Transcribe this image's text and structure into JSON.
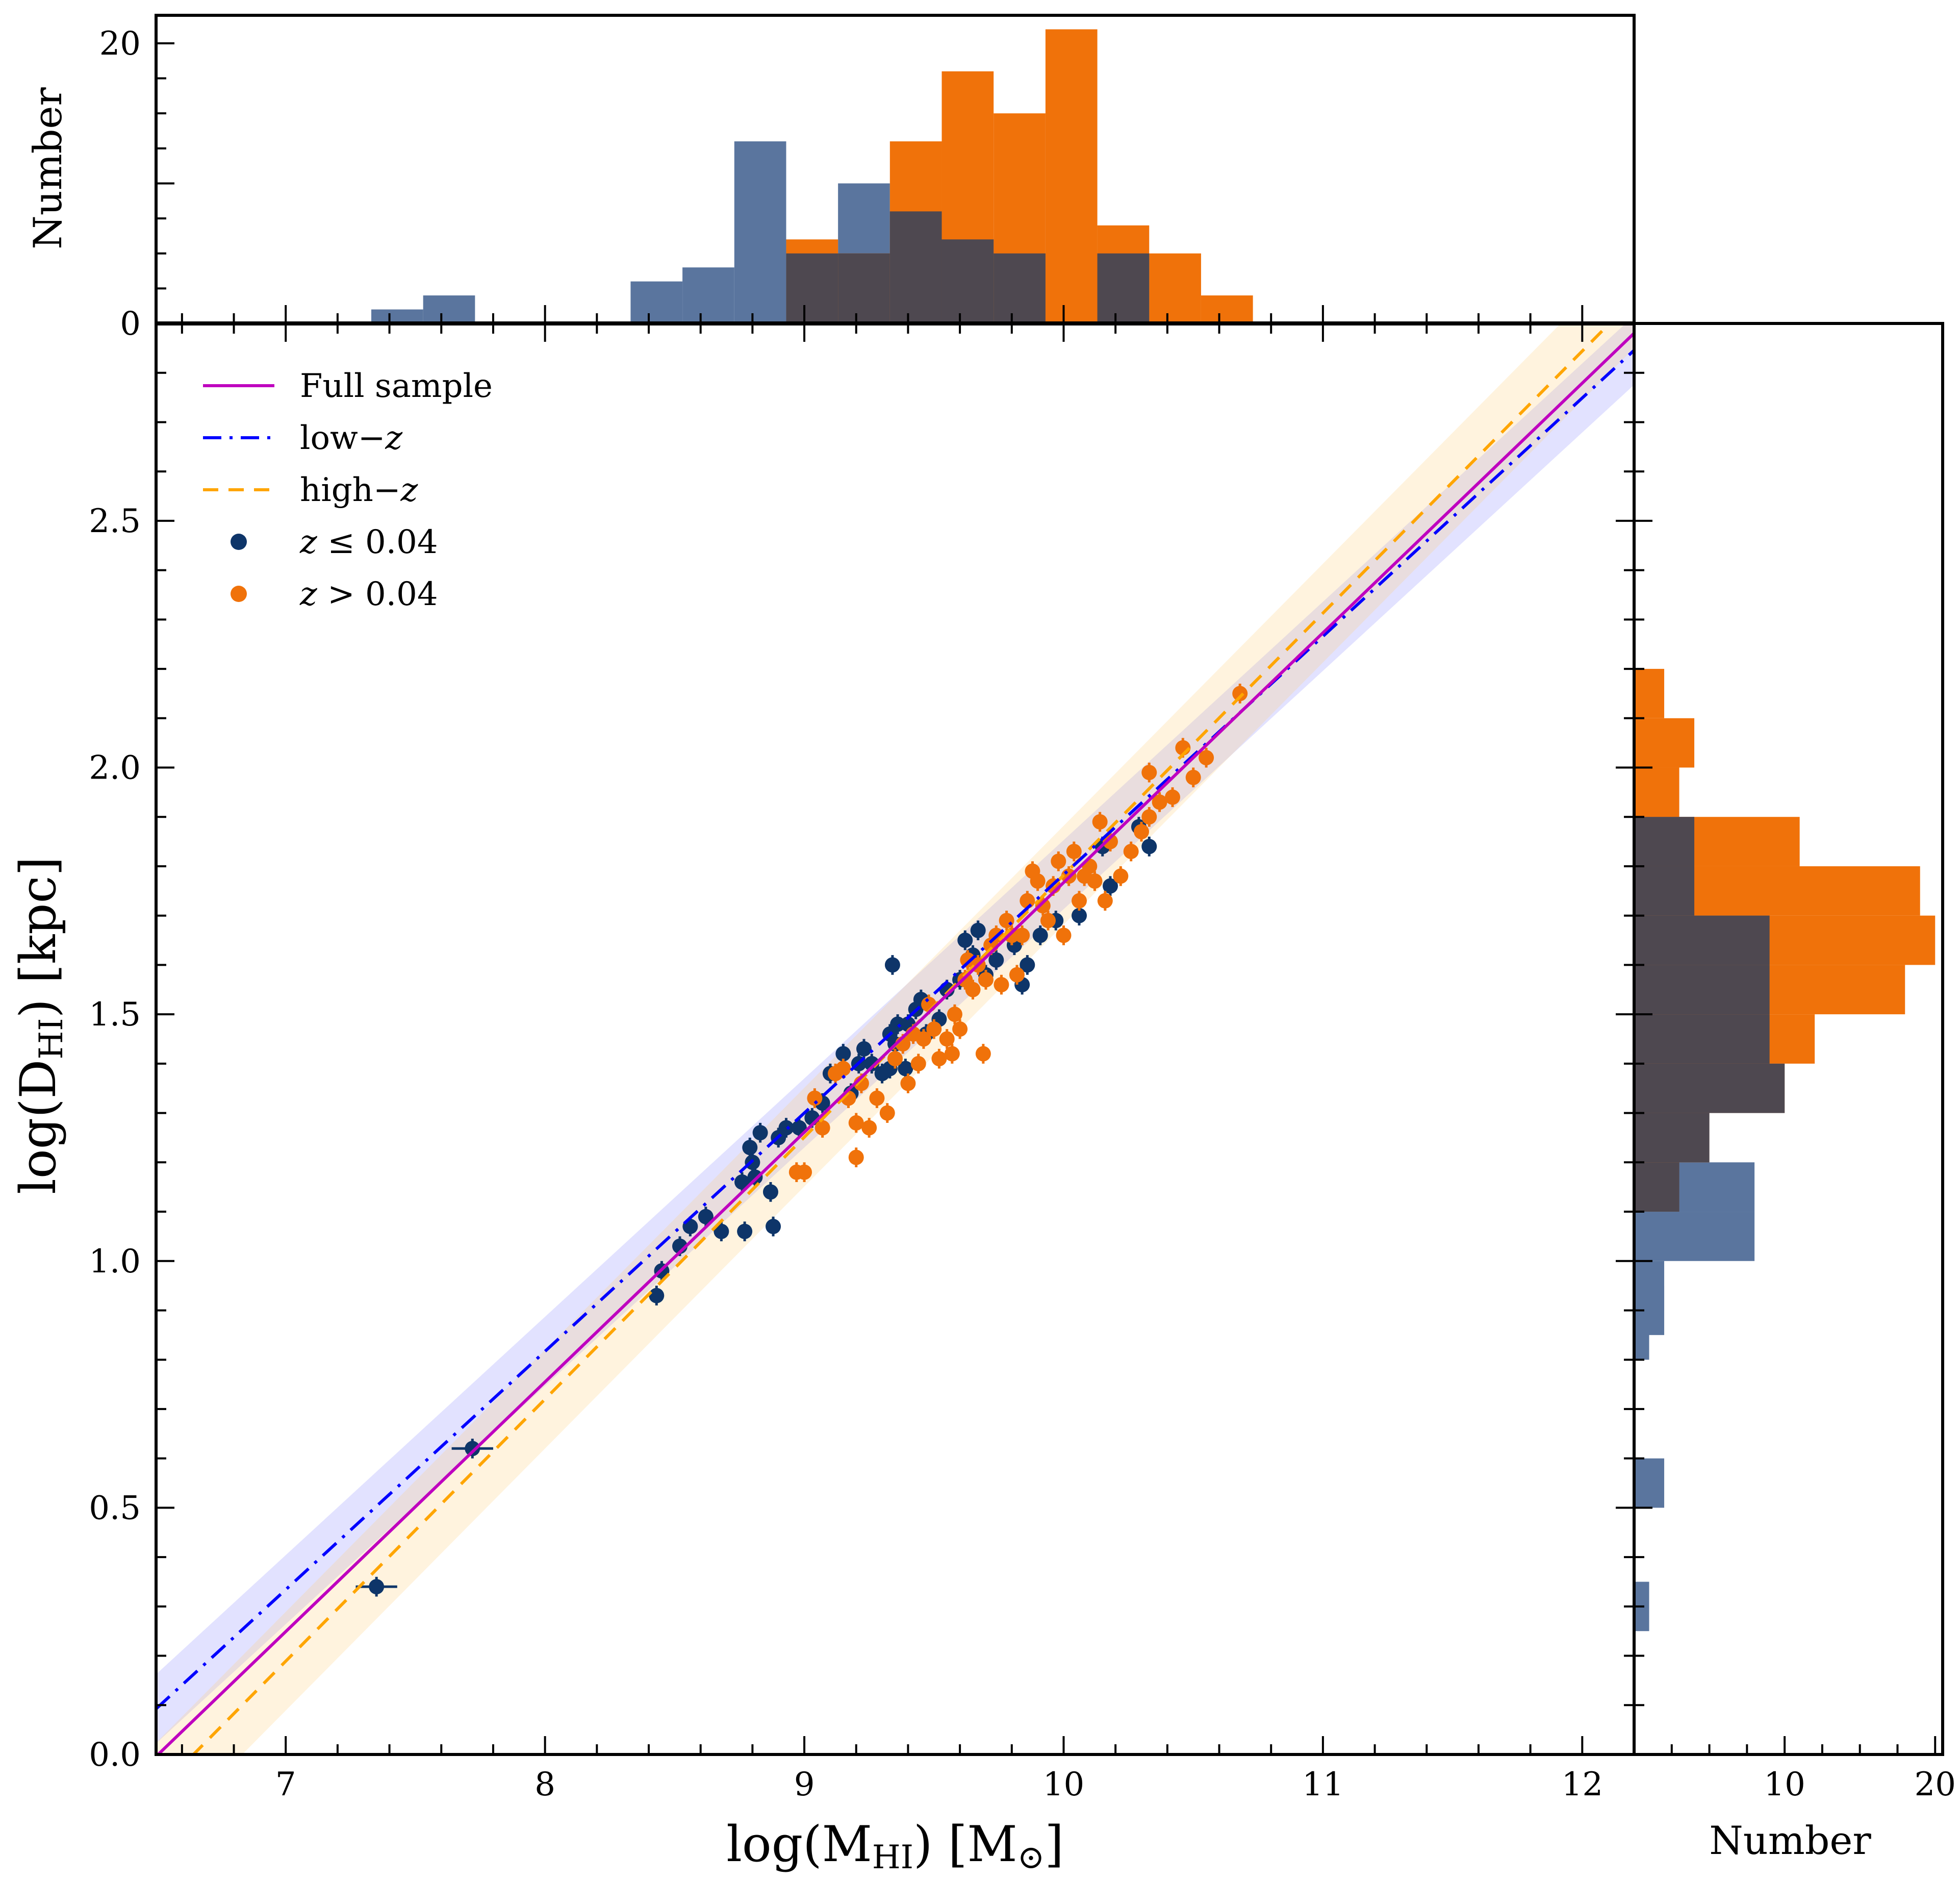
{
  "chart_data": [
    {
      "type": "scatter",
      "role": "main",
      "xlabel": "log(M_HI) [M_⊙]",
      "xlabel_parts": {
        "pre": "log(M",
        "sub": "HI",
        "mid": ") [M",
        "sub2": "⊙",
        "post": "]"
      },
      "ylabel": "log(D_HI) [kpc]",
      "ylabel_parts": {
        "pre": "log(D",
        "sub": "HI",
        "post": ") [kpc]"
      },
      "xlim": [
        6.5,
        12.2
      ],
      "ylim": [
        0.0,
        2.9
      ],
      "xticks": [
        7,
        8,
        9,
        10,
        11,
        12
      ],
      "xtick_labels": [
        "7",
        "8",
        "9",
        "10",
        "11",
        "12"
      ],
      "yticks": [
        0.0,
        0.5,
        1.0,
        1.5,
        2.0,
        2.5
      ],
      "ytick_labels": [
        "0.0",
        "0.5",
        "1.0",
        "1.5",
        "2.0",
        "2.5"
      ],
      "grid": false,
      "legend_position": "top-left",
      "legend": [
        {
          "label": "Full sample",
          "kind": "line",
          "style": "solid",
          "color": "#bf00bf"
        },
        {
          "label": "low−z",
          "label_parts": [
            "low−",
            "z"
          ],
          "kind": "line",
          "style": "dashdot",
          "color": "#0000ff"
        },
        {
          "label": "high−z",
          "label_parts": [
            "high−",
            "z"
          ],
          "kind": "line",
          "style": "dashed",
          "color": "#ffa500"
        },
        {
          "label": "z ≤ 0.04",
          "label_parts": [
            "z",
            " ≤ 0.04"
          ],
          "kind": "marker",
          "color": "#0e3569"
        },
        {
          "label": "z > 0.04",
          "label_parts": [
            "z",
            " > 0.04"
          ],
          "kind": "marker",
          "color": "#f0720a"
        }
      ],
      "fits": [
        {
          "name": "Full sample",
          "slope": 0.506,
          "intercept": -3.293,
          "color": "#bf00bf",
          "dash": "",
          "width": 6,
          "band": 0
        },
        {
          "name": "low−z",
          "slope": 0.483,
          "intercept": -3.047,
          "color": "#0000ff",
          "dash": "36,16,6,16",
          "width": 6,
          "band": 0.07,
          "band_color": "#6f6fff",
          "band_opacity": 0.2
        },
        {
          "name": "high−z",
          "slope": 0.531,
          "intercept": -3.528,
          "color": "#ffa500",
          "dash": "30,20",
          "width": 6,
          "band": 0.1,
          "band_color": "#ffcf7a",
          "band_opacity": 0.25
        }
      ],
      "series": [
        {
          "name": "z ≤ 0.04",
          "color": "#0e3569",
          "points": [
            [
              7.35,
              0.34
            ],
            [
              7.72,
              0.62
            ],
            [
              8.43,
              0.93
            ],
            [
              8.45,
              0.98
            ],
            [
              8.52,
              1.03
            ],
            [
              8.56,
              1.07
            ],
            [
              8.62,
              1.09
            ],
            [
              8.68,
              1.06
            ],
            [
              8.77,
              1.06
            ],
            [
              8.76,
              1.16
            ],
            [
              8.8,
              1.2
            ],
            [
              8.79,
              1.23
            ],
            [
              8.83,
              1.26
            ],
            [
              8.81,
              1.17
            ],
            [
              8.88,
              1.07
            ],
            [
              8.87,
              1.14
            ],
            [
              8.9,
              1.25
            ],
            [
              8.93,
              1.27
            ],
            [
              8.98,
              1.27
            ],
            [
              9.03,
              1.29
            ],
            [
              9.07,
              1.32
            ],
            [
              9.1,
              1.38
            ],
            [
              9.15,
              1.42
            ],
            [
              9.18,
              1.34
            ],
            [
              9.21,
              1.4
            ],
            [
              9.23,
              1.43
            ],
            [
              9.26,
              1.4
            ],
            [
              9.3,
              1.38
            ],
            [
              9.33,
              1.39
            ],
            [
              9.35,
              1.44
            ],
            [
              9.33,
              1.46
            ],
            [
              9.36,
              1.48
            ],
            [
              9.39,
              1.39
            ],
            [
              9.34,
              1.6
            ],
            [
              9.4,
              1.48
            ],
            [
              9.43,
              1.51
            ],
            [
              9.45,
              1.53
            ],
            [
              9.47,
              1.46
            ],
            [
              9.52,
              1.49
            ],
            [
              9.55,
              1.55
            ],
            [
              9.6,
              1.57
            ],
            [
              9.65,
              1.62
            ],
            [
              9.62,
              1.65
            ],
            [
              9.67,
              1.67
            ],
            [
              9.7,
              1.58
            ],
            [
              9.74,
              1.61
            ],
            [
              9.81,
              1.64
            ],
            [
              9.86,
              1.6
            ],
            [
              9.84,
              1.56
            ],
            [
              9.91,
              1.66
            ],
            [
              9.97,
              1.69
            ],
            [
              10.06,
              1.7
            ],
            [
              10.15,
              1.84
            ],
            [
              10.18,
              1.76
            ],
            [
              10.29,
              1.88
            ],
            [
              10.33,
              1.84
            ]
          ]
        },
        {
          "name": "z > 0.04",
          "color": "#f0720a",
          "points": [
            [
              8.97,
              1.18
            ],
            [
              9.0,
              1.18
            ],
            [
              9.04,
              1.33
            ],
            [
              9.07,
              1.27
            ],
            [
              9.12,
              1.38
            ],
            [
              9.15,
              1.39
            ],
            [
              9.17,
              1.33
            ],
            [
              9.2,
              1.28
            ],
            [
              9.2,
              1.21
            ],
            [
              9.22,
              1.36
            ],
            [
              9.25,
              1.27
            ],
            [
              9.28,
              1.33
            ],
            [
              9.32,
              1.3
            ],
            [
              9.35,
              1.41
            ],
            [
              9.38,
              1.44
            ],
            [
              9.4,
              1.36
            ],
            [
              9.42,
              1.46
            ],
            [
              9.44,
              1.4
            ],
            [
              9.46,
              1.45
            ],
            [
              9.48,
              1.52
            ],
            [
              9.5,
              1.47
            ],
            [
              9.52,
              1.41
            ],
            [
              9.55,
              1.45
            ],
            [
              9.57,
              1.42
            ],
            [
              9.58,
              1.5
            ],
            [
              9.6,
              1.47
            ],
            [
              9.62,
              1.57
            ],
            [
              9.63,
              1.61
            ],
            [
              9.65,
              1.55
            ],
            [
              9.67,
              1.6
            ],
            [
              9.69,
              1.42
            ],
            [
              9.7,
              1.57
            ],
            [
              9.72,
              1.64
            ],
            [
              9.74,
              1.66
            ],
            [
              9.76,
              1.56
            ],
            [
              9.78,
              1.69
            ],
            [
              9.8,
              1.66
            ],
            [
              9.82,
              1.58
            ],
            [
              9.84,
              1.66
            ],
            [
              9.86,
              1.73
            ],
            [
              9.88,
              1.79
            ],
            [
              9.9,
              1.77
            ],
            [
              9.92,
              1.72
            ],
            [
              9.94,
              1.69
            ],
            [
              9.96,
              1.76
            ],
            [
              9.98,
              1.81
            ],
            [
              10.0,
              1.66
            ],
            [
              10.02,
              1.78
            ],
            [
              10.04,
              1.83
            ],
            [
              10.06,
              1.73
            ],
            [
              10.08,
              1.78
            ],
            [
              10.1,
              1.8
            ],
            [
              10.12,
              1.77
            ],
            [
              10.14,
              1.89
            ],
            [
              10.16,
              1.73
            ],
            [
              10.18,
              1.85
            ],
            [
              10.22,
              1.78
            ],
            [
              10.26,
              1.83
            ],
            [
              10.3,
              1.87
            ],
            [
              10.33,
              1.9
            ],
            [
              10.33,
              1.99
            ],
            [
              10.37,
              1.93
            ],
            [
              10.42,
              1.94
            ],
            [
              10.46,
              2.04
            ],
            [
              10.5,
              1.98
            ],
            [
              10.55,
              2.02
            ],
            [
              10.68,
              2.15
            ]
          ]
        }
      ]
    },
    {
      "type": "bar",
      "role": "top-histogram",
      "ylabel": "Number",
      "ylim": [
        0,
        22
      ],
      "yticks": [
        0,
        20
      ],
      "ytick_labels": [
        "0",
        "20"
      ],
      "bin_width": 0.2,
      "series": [
        {
          "name": "z ≤ 0.04",
          "color": "#5a759e",
          "bins": [
            {
              "x": 7.33,
              "count": 1
            },
            {
              "x": 7.53,
              "count": 2
            },
            {
              "x": 8.33,
              "count": 3
            },
            {
              "x": 8.53,
              "count": 4
            },
            {
              "x": 8.73,
              "count": 13
            },
            {
              "x": 8.93,
              "count": 5
            },
            {
              "x": 9.13,
              "count": 10
            },
            {
              "x": 9.33,
              "count": 8
            },
            {
              "x": 9.53,
              "count": 6
            },
            {
              "x": 9.73,
              "count": 5
            },
            {
              "x": 9.93,
              "count": 0
            },
            {
              "x": 10.13,
              "count": 5
            }
          ]
        },
        {
          "name": "z > 0.04",
          "color": "#f0720a",
          "bins": [
            {
              "x": 8.93,
              "count": 6
            },
            {
              "x": 9.13,
              "count": 5
            },
            {
              "x": 9.33,
              "count": 13
            },
            {
              "x": 9.53,
              "count": 18
            },
            {
              "x": 9.73,
              "count": 15
            },
            {
              "x": 9.93,
              "count": 21
            },
            {
              "x": 10.13,
              "count": 7
            },
            {
              "x": 10.33,
              "count": 5
            },
            {
              "x": 10.53,
              "count": 2
            }
          ]
        }
      ],
      "overlap_color": "#4e4850"
    },
    {
      "type": "bar",
      "role": "right-histogram",
      "orientation": "horizontal",
      "xlabel": "Number",
      "xlim": [
        0,
        20.5
      ],
      "xticks": [
        10,
        20
      ],
      "xtick_labels": [
        "10",
        "20"
      ],
      "bin_width": 0.1,
      "series": [
        {
          "name": "z ≤ 0.04",
          "color": "#5a759e",
          "bins": [
            {
              "y": 0.3,
              "count": 1
            },
            {
              "y": 0.55,
              "count": 2
            },
            {
              "y": 0.85,
              "count": 1
            },
            {
              "y": 0.9,
              "count": 2
            },
            {
              "y": 0.95,
              "count": 2
            },
            {
              "y": 1.05,
              "count": 8
            },
            {
              "y": 1.15,
              "count": 8
            },
            {
              "y": 1.25,
              "count": 5
            },
            {
              "y": 1.35,
              "count": 10
            },
            {
              "y": 1.45,
              "count": 9
            },
            {
              "y": 1.55,
              "count": 9
            },
            {
              "y": 1.65,
              "count": 9
            },
            {
              "y": 1.75,
              "count": 4
            },
            {
              "y": 1.85,
              "count": 4
            }
          ]
        },
        {
          "name": "z > 0.04",
          "color": "#f0720a",
          "bins": [
            {
              "y": 1.15,
              "count": 3
            },
            {
              "y": 1.25,
              "count": 5
            },
            {
              "y": 1.35,
              "count": 10
            },
            {
              "y": 1.45,
              "count": 12
            },
            {
              "y": 1.55,
              "count": 18
            },
            {
              "y": 1.65,
              "count": 20
            },
            {
              "y": 1.75,
              "count": 19
            },
            {
              "y": 1.85,
              "count": 11
            },
            {
              "y": 1.95,
              "count": 3
            },
            {
              "y": 2.05,
              "count": 4
            },
            {
              "y": 2.15,
              "count": 2
            }
          ]
        }
      ],
      "overlap_color": "#4e4850"
    }
  ]
}
